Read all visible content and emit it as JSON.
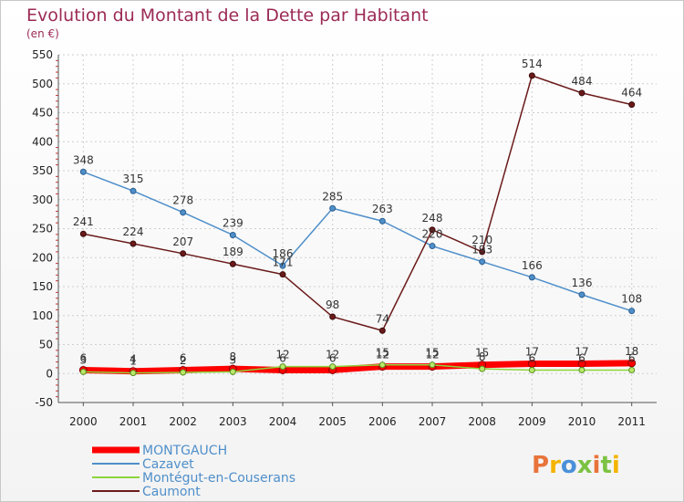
{
  "chart_data": {
    "type": "line",
    "title": "Evolution du Montant de la Dette par Habitant",
    "subtitle": "(en €)",
    "x": [
      "2000",
      "2001",
      "2002",
      "2003",
      "2004",
      "2005",
      "2006",
      "2007",
      "2008",
      "2009",
      "2010",
      "2011"
    ],
    "ylim": [
      -50,
      550
    ],
    "yticks": [
      -50,
      0,
      50,
      100,
      150,
      200,
      250,
      300,
      350,
      400,
      450,
      500,
      550
    ],
    "grid": true,
    "legend_position": "bottom-left",
    "series": [
      {
        "name": "MONTGAUCH",
        "color": "#ff0000",
        "values": [
          6,
          4,
          6,
          8,
          6,
          6,
          12,
          12,
          15,
          17,
          17,
          18
        ],
        "labels": [
          "6",
          "4",
          "6",
          "8",
          "6",
          "6",
          "12",
          "12",
          "15",
          "17",
          "17",
          "18"
        ]
      },
      {
        "name": "Cazavet",
        "color": "#4f8fca",
        "values": [
          348,
          315,
          278,
          239,
          186,
          285,
          263,
          220,
          193,
          166,
          136,
          108
        ],
        "labels": [
          "348",
          "315",
          "278",
          "239",
          "186",
          "285",
          "263",
          "220",
          "193",
          "166",
          "136",
          "108"
        ]
      },
      {
        "name": "Montégut-en-Couserans",
        "color": "#8cd43c",
        "values": [
          3,
          1,
          2,
          3,
          12,
          12,
          15,
          15,
          8,
          6,
          6,
          6
        ],
        "labels": [
          "3",
          "1",
          "2",
          "3",
          "12",
          "12",
          "15",
          "15",
          "8",
          "6",
          "6",
          "6"
        ]
      },
      {
        "name": "Caumont",
        "color": "#6b1a1a",
        "values": [
          241,
          224,
          207,
          189,
          171,
          98,
          74,
          248,
          210,
          514,
          484,
          464
        ],
        "labels": [
          "241",
          "224",
          "207",
          "189",
          "171",
          "98",
          "74",
          "248",
          "210",
          "514",
          "484",
          "464"
        ]
      }
    ]
  },
  "branding": {
    "logo_text": "Proxiti",
    "logo_colors": [
      "#e8743b",
      "#f4b400",
      "#4a90d9",
      "#7cc242"
    ]
  }
}
